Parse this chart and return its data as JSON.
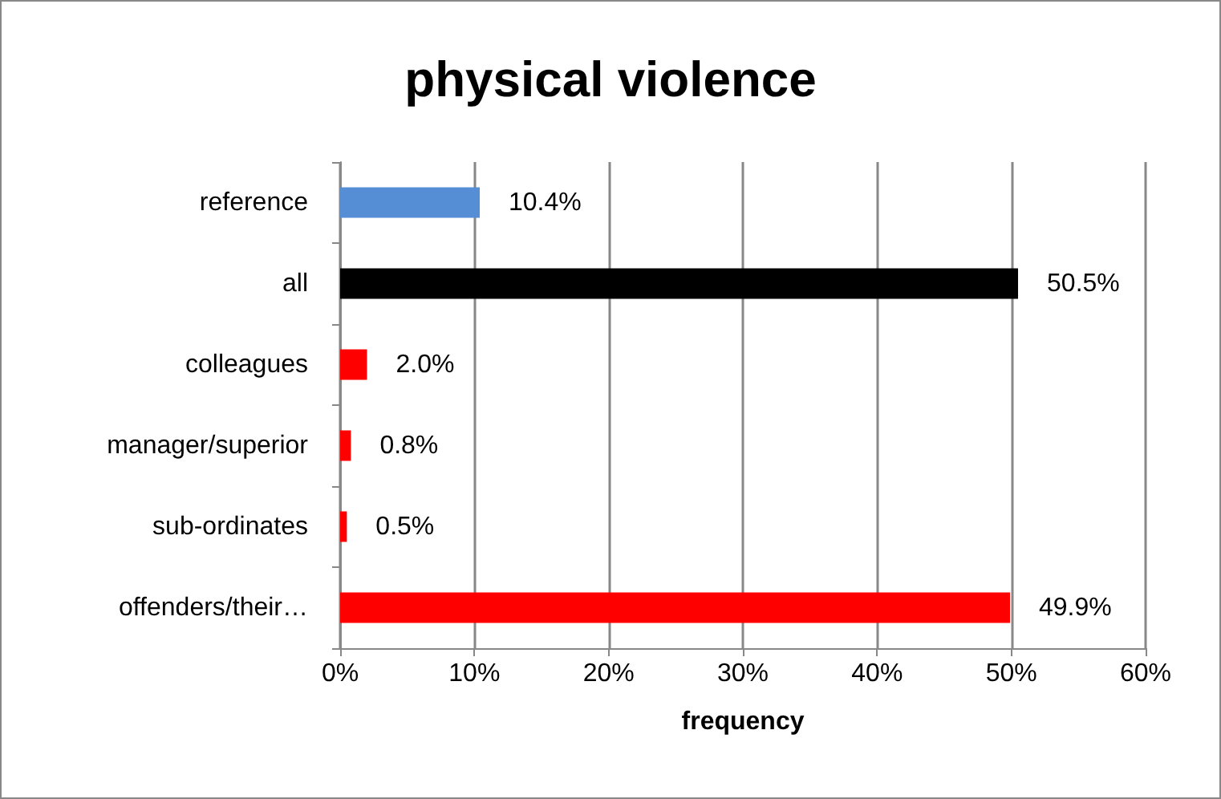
{
  "chart_data": {
    "type": "bar",
    "orientation": "horizontal",
    "title": "physical violence",
    "xlabel": "frequency",
    "categories": [
      "reference",
      "all",
      "colleagues",
      "manager/superior",
      "sub-ordinates",
      "offenders/their…"
    ],
    "values": [
      10.4,
      50.5,
      2.0,
      0.8,
      0.5,
      49.9
    ],
    "colors": [
      "#558ed5",
      "#000000",
      "#ff0000",
      "#ff0000",
      "#ff0000",
      "#ff0000"
    ],
    "value_labels": [
      "10.4%",
      "50.5%",
      "2.0%",
      "0.8%",
      "0.5%",
      "49.9%"
    ],
    "xlim": [
      0,
      60
    ],
    "xticks": [
      {
        "value": 0,
        "label": "0%"
      },
      {
        "value": 10,
        "label": "10%"
      },
      {
        "value": 20,
        "label": "20%"
      },
      {
        "value": 30,
        "label": "30%"
      },
      {
        "value": 40,
        "label": "40%"
      },
      {
        "value": 50,
        "label": "50%"
      },
      {
        "value": 60,
        "label": "60%"
      }
    ],
    "grid": "x"
  }
}
